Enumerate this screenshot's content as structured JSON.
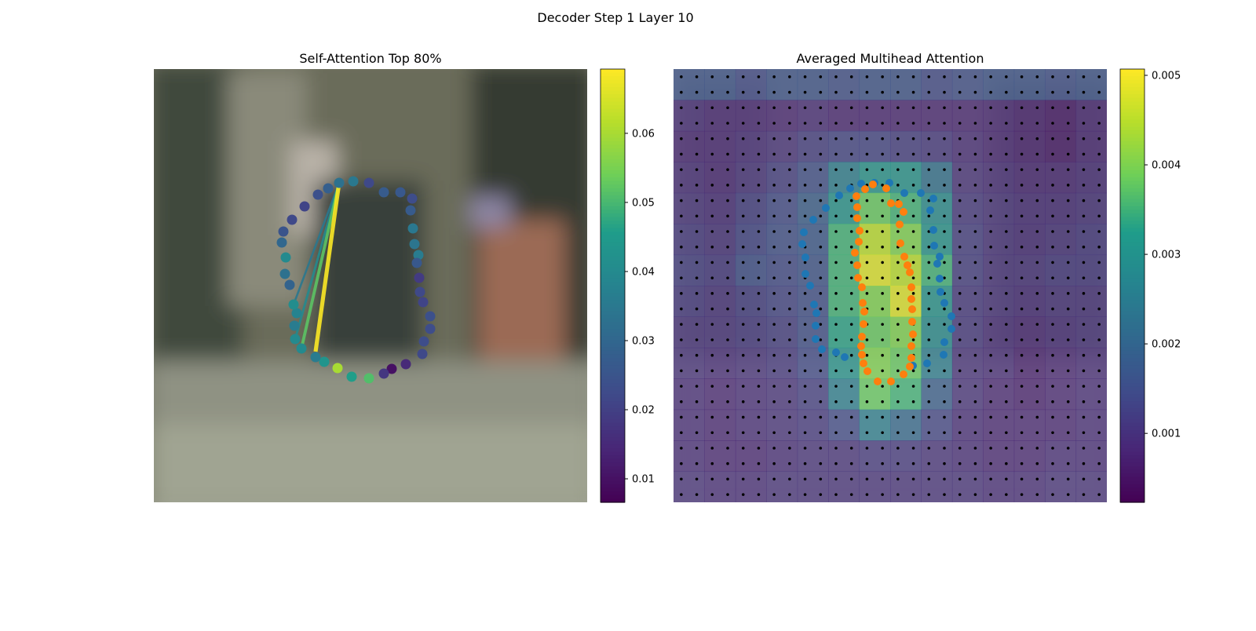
{
  "title": "Decoder Step 1 Layer 10",
  "chart_data": [
    {
      "type": "scatter",
      "title": "Self-Attention Top 80%",
      "xlim": [
        0,
        552
      ],
      "ylim": [
        552,
        0
      ],
      "cmap": "viridis",
      "clim": [
        0.0066,
        0.0693
      ],
      "cticks": [
        0.01,
        0.02,
        0.03,
        0.04,
        0.05,
        0.06
      ],
      "points": {
        "x": [
          236,
          254,
          274,
          293,
          314,
          329,
          327,
          330,
          332,
          337,
          335,
          338,
          339,
          343,
          352,
          352,
          344,
          342,
          321,
          303,
          293,
          274,
          252,
          234,
          217,
          206,
          188,
          180,
          179,
          182,
          178,
          173,
          167,
          168,
          163,
          165,
          176,
          192,
          209,
          222
        ],
        "y": [
          145,
          143,
          145,
          157,
          157,
          165,
          180,
          203,
          223,
          237,
          247,
          266,
          284,
          297,
          315,
          331,
          347,
          363,
          376,
          382,
          388,
          394,
          392,
          381,
          373,
          367,
          356,
          344,
          327,
          311,
          300,
          275,
          261,
          240,
          221,
          207,
          192,
          175,
          160,
          152
        ],
        "values": [
          0.033,
          0.035,
          0.022,
          0.027,
          0.026,
          0.023,
          0.027,
          0.035,
          0.034,
          0.036,
          0.026,
          0.019,
          0.022,
          0.021,
          0.024,
          0.023,
          0.023,
          0.022,
          0.015,
          0.01,
          0.018,
          0.051,
          0.046,
          0.06,
          0.043,
          0.036,
          0.04,
          0.04,
          0.036,
          0.038,
          0.041,
          0.029,
          0.033,
          0.04,
          0.03,
          0.025,
          0.022,
          0.021,
          0.024,
          0.028
        ]
      },
      "edges": [
        {
          "x": [
            236,
            178
          ],
          "y": [
            145,
            300
          ],
          "value": 0.035
        },
        {
          "x": [
            236,
            180
          ],
          "y": [
            145,
            344
          ],
          "value": 0.04
        },
        {
          "x": [
            236,
            188
          ],
          "y": [
            145,
            356
          ],
          "value": 0.052
        },
        {
          "x": [
            236,
            206
          ],
          "y": [
            145,
            360
          ],
          "value": 0.069
        }
      ]
    },
    {
      "type": "heatmap",
      "title": "Averaged Multihead Attention",
      "xlim": [
        0,
        552
      ],
      "ylim": [
        552,
        0
      ],
      "cmap": "viridis",
      "clim": [
        0.00023,
        0.00507
      ],
      "cticks": [
        0.001,
        0.002,
        0.003,
        0.004,
        0.005
      ],
      "heatmap": [
        [
          0.0016,
          0.0016,
          0.0014,
          0.0016,
          0.0016,
          0.0015,
          0.0016,
          0.0016,
          0.0014,
          0.0015,
          0.0016,
          0.0016,
          0.0015,
          0.0016
        ],
        [
          0.0009,
          0.0008,
          0.0008,
          0.0008,
          0.0009,
          0.0008,
          0.0008,
          0.0008,
          0.0008,
          0.0008,
          0.0008,
          0.0007,
          0.0006,
          0.0008
        ],
        [
          0.0008,
          0.0008,
          0.0009,
          0.001,
          0.0012,
          0.0013,
          0.0013,
          0.0012,
          0.0011,
          0.0009,
          0.0008,
          0.0007,
          0.0006,
          0.0008
        ],
        [
          0.0009,
          0.0008,
          0.001,
          0.0012,
          0.0015,
          0.0025,
          0.003,
          0.003,
          0.0022,
          0.001,
          0.0009,
          0.0008,
          0.0008,
          0.0009
        ],
        [
          0.001,
          0.0009,
          0.0012,
          0.0014,
          0.0018,
          0.003,
          0.0038,
          0.0035,
          0.0028,
          0.0011,
          0.001,
          0.0009,
          0.0009,
          0.001
        ],
        [
          0.0011,
          0.001,
          0.0013,
          0.0015,
          0.0017,
          0.0035,
          0.0045,
          0.004,
          0.003,
          0.0012,
          0.001,
          0.0009,
          0.001,
          0.0011
        ],
        [
          0.0012,
          0.0011,
          0.0015,
          0.0014,
          0.0016,
          0.0035,
          0.0048,
          0.0045,
          0.0035,
          0.0012,
          0.001,
          0.001,
          0.0011,
          0.0011
        ],
        [
          0.0011,
          0.001,
          0.0012,
          0.0013,
          0.0015,
          0.0035,
          0.004,
          0.0048,
          0.003,
          0.0011,
          0.001,
          0.0009,
          0.001,
          0.001
        ],
        [
          0.001,
          0.001,
          0.0011,
          0.0012,
          0.0015,
          0.0033,
          0.0038,
          0.004,
          0.0028,
          0.0011,
          0.0009,
          0.0008,
          0.0009,
          0.001
        ],
        [
          0.001,
          0.0009,
          0.001,
          0.0011,
          0.0014,
          0.003,
          0.004,
          0.0038,
          0.0025,
          0.001,
          0.0009,
          0.0007,
          0.0008,
          0.0009
        ],
        [
          0.0009,
          0.0008,
          0.0009,
          0.001,
          0.0012,
          0.0025,
          0.0038,
          0.0035,
          0.0018,
          0.001,
          0.0008,
          0.0007,
          0.0008,
          0.0009
        ],
        [
          0.0009,
          0.0008,
          0.0009,
          0.001,
          0.0011,
          0.0014,
          0.0025,
          0.002,
          0.0013,
          0.0009,
          0.0008,
          0.0008,
          0.0008,
          0.0009
        ],
        [
          0.0009,
          0.0008,
          0.0008,
          0.0009,
          0.001,
          0.001,
          0.0011,
          0.0011,
          0.001,
          0.0009,
          0.0008,
          0.0008,
          0.0009,
          0.0009
        ],
        [
          0.001,
          0.0009,
          0.0009,
          0.001,
          0.001,
          0.001,
          0.001,
          0.001,
          0.001,
          0.001,
          0.0009,
          0.0009,
          0.001,
          0.001
        ]
      ],
      "series": [
        {
          "color": "#1f77b4",
          "x": [
            211,
            225,
            239,
            256,
            275,
            294,
            315,
            331,
            327,
            331,
            332,
            339,
            336,
            339,
            340,
            345,
            354,
            354,
            345,
            344,
            323,
            305,
            218,
            207,
            189,
            181,
            181,
            182,
            179,
            174,
            168,
            168,
            164,
            166,
            178,
            194
          ],
          "y": [
            161,
            152,
            146,
            145,
            145,
            158,
            158,
            165,
            180,
            205,
            225,
            239,
            248,
            267,
            284,
            298,
            315,
            331,
            348,
            364,
            375,
            378,
            367,
            361,
            357,
            344,
            327,
            311,
            300,
            276,
            261,
            240,
            223,
            208,
            192,
            177
          ]
        },
        {
          "color": "#ff7f0e",
          "x": [
            233,
            244,
            254,
            271,
            277,
            287,
            293,
            288,
            234,
            234,
            237,
            236,
            231,
            234,
            235,
            240,
            289,
            294,
            298,
            301,
            303,
            303,
            304,
            304,
            305,
            303,
            303,
            301,
            293,
            277,
            260,
            247,
            242,
            240,
            239,
            240,
            242,
            243,
            241
          ],
          "y": [
            162,
            153,
            147,
            152,
            171,
            172,
            182,
            198,
            176,
            190,
            206,
            220,
            234,
            250,
            266,
            278,
            222,
            239,
            250,
            259,
            278,
            293,
            306,
            322,
            338,
            353,
            368,
            379,
            389,
            398,
            398,
            385,
            375,
            364,
            353,
            341,
            325,
            309,
            298
          ]
        }
      ]
    }
  ]
}
